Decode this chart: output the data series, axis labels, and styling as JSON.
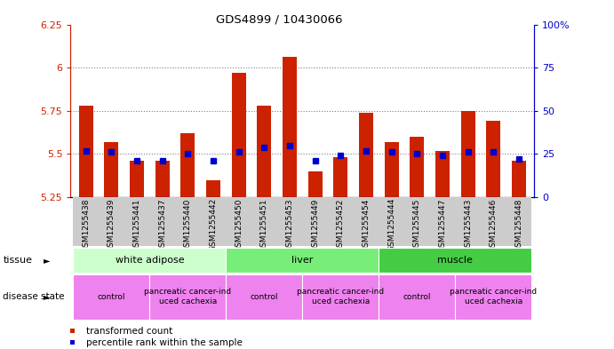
{
  "title": "GDS4899 / 10430066",
  "samples": [
    "GSM1255438",
    "GSM1255439",
    "GSM1255441",
    "GSM1255437",
    "GSM1255440",
    "GSM1255442",
    "GSM1255450",
    "GSM1255451",
    "GSM1255453",
    "GSM1255449",
    "GSM1255452",
    "GSM1255454",
    "GSM1255444",
    "GSM1255445",
    "GSM1255447",
    "GSM1255443",
    "GSM1255446",
    "GSM1255448"
  ],
  "red_values": [
    5.78,
    5.57,
    5.46,
    5.46,
    5.62,
    5.35,
    5.97,
    5.78,
    6.06,
    5.4,
    5.48,
    5.74,
    5.57,
    5.6,
    5.52,
    5.75,
    5.69,
    5.46
  ],
  "blue_values": [
    27,
    26,
    21,
    21,
    25,
    21,
    26,
    29,
    30,
    21,
    24,
    27,
    26,
    25,
    24,
    26,
    26,
    22
  ],
  "ymin": 5.25,
  "ymax": 6.25,
  "yticks": [
    5.25,
    5.5,
    5.75,
    6.0,
    6.25
  ],
  "ytick_labels": [
    "5.25",
    "5.5",
    "5.75",
    "6",
    "6.25"
  ],
  "y2min": 0,
  "y2max": 100,
  "y2ticks": [
    0,
    25,
    50,
    75,
    100
  ],
  "y2tick_labels": [
    "0",
    "25",
    "50",
    "75",
    "100%"
  ],
  "tissue_groups": [
    {
      "label": "white adipose",
      "start": 0,
      "end": 6,
      "color": "#ccffcc"
    },
    {
      "label": "liver",
      "start": 6,
      "end": 12,
      "color": "#66dd66"
    },
    {
      "label": "muscle",
      "start": 12,
      "end": 18,
      "color": "#44cc44"
    }
  ],
  "disease_groups": [
    {
      "label": "control",
      "start": 0,
      "end": 3,
      "color": "#ee82ee"
    },
    {
      "label": "pancreatic cancer-ind\nuced cachexia",
      "start": 3,
      "end": 6,
      "color": "#ee82ee"
    },
    {
      "label": "control",
      "start": 6,
      "end": 9,
      "color": "#ee82ee"
    },
    {
      "label": "pancreatic cancer-ind\nuced cachexia",
      "start": 9,
      "end": 12,
      "color": "#ee82ee"
    },
    {
      "label": "control",
      "start": 12,
      "end": 15,
      "color": "#ee82ee"
    },
    {
      "label": "pancreatic cancer-ind\nuced cachexia",
      "start": 15,
      "end": 18,
      "color": "#ee82ee"
    }
  ],
  "red_color": "#cc2200",
  "blue_color": "#0000cc",
  "bar_width": 0.55,
  "blue_marker_size": 5,
  "xtick_bg_color": "#cccccc",
  "grid_color": "#000000",
  "grid_alpha": 0.5,
  "tissue_light_green": "#ccffcc",
  "tissue_mid_green": "#77ee77",
  "tissue_dark_green": "#44cc44",
  "disease_color": "#ee82ee"
}
